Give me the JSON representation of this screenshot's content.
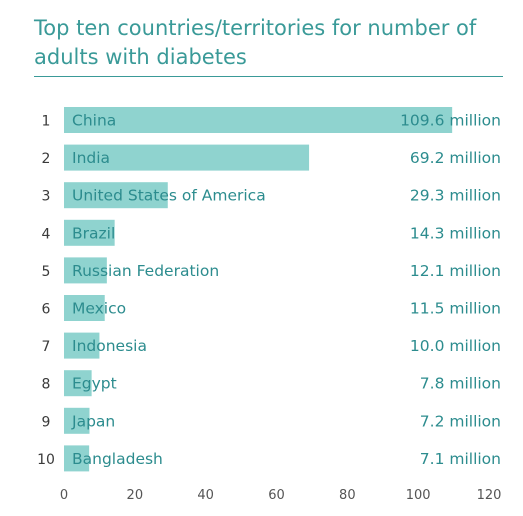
{
  "chart_data": {
    "type": "bar",
    "orientation": "horizontal",
    "title": "Top ten countries/territories for number of adults with diabetes",
    "ranks": [
      "1",
      "2",
      "3",
      "4",
      "5",
      "6",
      "7",
      "8",
      "9",
      "10"
    ],
    "categories": [
      "China",
      "India",
      "United States of America",
      "Brazil",
      "Russian Federation",
      "Mexico",
      "Indonesia",
      "Egypt",
      "Japan",
      "Bangladesh"
    ],
    "values": [
      109.6,
      69.2,
      29.3,
      14.3,
      12.1,
      11.5,
      10.0,
      7.8,
      7.2,
      7.1
    ],
    "value_labels": [
      "109.6 million",
      "69.2 million",
      "29.3 million",
      "14.3 million",
      "12.1 million",
      "11.5 million",
      "10.0 million",
      "7.8 million",
      "7.2 million",
      "7.1 million"
    ],
    "xlim": [
      0,
      120
    ],
    "xticks": [
      0,
      20,
      40,
      60,
      80,
      100,
      120
    ],
    "grid": false,
    "bar_color": "#8fd3cf",
    "text_color": "#2c8c8e",
    "title_color": "#3a9a98"
  }
}
